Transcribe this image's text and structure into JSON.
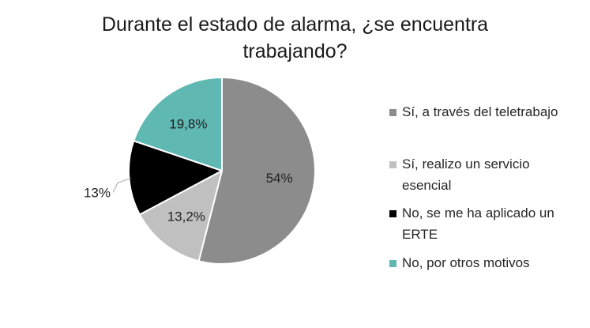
{
  "chart_data": {
    "type": "pie",
    "title": "Durante el estado de alarma, ¿se encuentra trabajando?",
    "title_lines": [
      "Durante el estado de alarma, ¿se encuentra",
      "trabajando?"
    ],
    "categories": [
      "Sí, a través del teletrabajo",
      "Sí, realizo un servicio esencial",
      "No, se me ha aplicado un ERTE",
      "No, por otros motivos"
    ],
    "values": [
      54,
      13.2,
      13,
      19.8
    ],
    "value_labels": [
      "54%",
      "13,2%",
      "13%",
      "19,8%"
    ],
    "colors": [
      "#8c8c8c",
      "#c0c0c0",
      "#000000",
      "#5fb8b2"
    ],
    "label_colors": [
      "#222222",
      "#222222",
      "#222222",
      "#222222"
    ],
    "legend_position": "right",
    "legend_lines": [
      [
        "Sí, a través del teletrabajo"
      ],
      [
        "Sí, realizo un servicio",
        "esencial"
      ],
      [
        "No, se me ha aplicado un",
        "ERTE"
      ],
      [
        "No, por otros motivos"
      ]
    ]
  }
}
